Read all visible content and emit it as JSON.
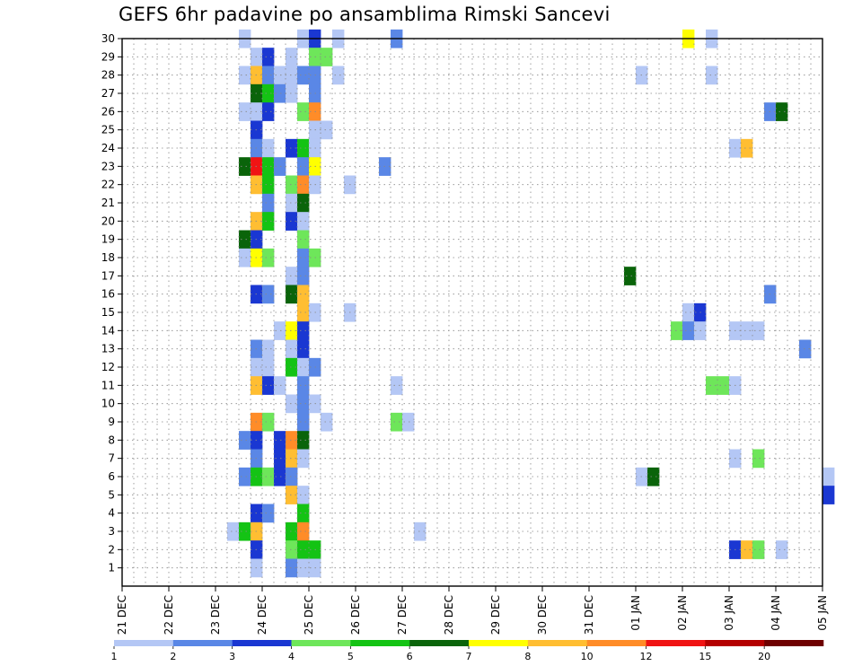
{
  "chart_data": {
    "type": "heatmap",
    "title": "GEFS 6hr padavine po ansamblima Rimski Sancevi",
    "x_ticks": [
      "21 DEC",
      "22 DEC",
      "23 DEC",
      "24 DEC",
      "25 DEC",
      "26 DEC",
      "27 DEC",
      "28 DEC",
      "29 DEC",
      "30 DEC",
      "31 DEC",
      "01 JAN",
      "02 JAN",
      "03 JAN",
      "04 JAN",
      "05 JAN"
    ],
    "x_range": [
      "2020-12-21",
      "2021-01-05"
    ],
    "steps_per_day": 4,
    "y_ticks": [
      1,
      2,
      3,
      4,
      5,
      6,
      7,
      8,
      9,
      10,
      11,
      12,
      13,
      14,
      15,
      16,
      17,
      18,
      19,
      20,
      21,
      22,
      23,
      24,
      25,
      26,
      27,
      28,
      29,
      30
    ],
    "ylim": [
      0,
      30
    ],
    "grid": true,
    "legend_position": "bottom",
    "legend": {
      "labels": [
        "1",
        "2",
        "3",
        "4",
        "5",
        "6",
        "7",
        "8",
        "10",
        "12",
        "15",
        "20"
      ],
      "colors": [
        "#b4c7f5",
        "#5a87e6",
        "#1a37d2",
        "#6ee65a",
        "#14c314",
        "#0a640a",
        "#ffff00",
        "#ffbe32",
        "#ff8c28",
        "#f01414",
        "#b40000",
        "#6e0000"
      ]
    },
    "cells": [
      {
        "member": 30,
        "time": "2020-12-23 12",
        "value": 1.5
      },
      {
        "member": 30,
        "time": "2020-12-24 18",
        "value": 1.5
      },
      {
        "member": 30,
        "time": "2020-12-25 00",
        "value": 3.5
      },
      {
        "member": 30,
        "time": "2020-12-25 12",
        "value": 1.5
      },
      {
        "member": 30,
        "time": "2020-12-26 18",
        "value": 2.5
      },
      {
        "member": 30,
        "time": "2021-01-02 00",
        "value": 7.5
      },
      {
        "member": 30,
        "time": "2021-01-02 12",
        "value": 1.5
      },
      {
        "member": 29,
        "time": "2020-12-23 18",
        "value": 1.5
      },
      {
        "member": 29,
        "time": "2020-12-24 00",
        "value": 3.5
      },
      {
        "member": 29,
        "time": "2020-12-24 12",
        "value": 1.5
      },
      {
        "member": 29,
        "time": "2020-12-25 00",
        "value": 4.5
      },
      {
        "member": 29,
        "time": "2020-12-25 06",
        "value": 4.5
      },
      {
        "member": 28,
        "time": "2020-12-23 12",
        "value": 1.5
      },
      {
        "member": 28,
        "time": "2020-12-23 18",
        "value": 9
      },
      {
        "member": 28,
        "time": "2020-12-24 00",
        "value": 2.5
      },
      {
        "member": 28,
        "time": "2020-12-24 06",
        "value": 1.5
      },
      {
        "member": 28,
        "time": "2020-12-24 12",
        "value": 1.5
      },
      {
        "member": 28,
        "time": "2020-12-24 18",
        "value": 2.5
      },
      {
        "member": 28,
        "time": "2020-12-25 00",
        "value": 2.5
      },
      {
        "member": 28,
        "time": "2020-12-25 12",
        "value": 1.5
      },
      {
        "member": 28,
        "time": "2021-01-01 00",
        "value": 1.5
      },
      {
        "member": 28,
        "time": "2021-01-02 12",
        "value": 1.5
      },
      {
        "member": 27,
        "time": "2020-12-23 18",
        "value": 6.5
      },
      {
        "member": 27,
        "time": "2020-12-24 00",
        "value": 5.5
      },
      {
        "member": 27,
        "time": "2020-12-24 06",
        "value": 2.5
      },
      {
        "member": 27,
        "time": "2020-12-24 12",
        "value": 1.5
      },
      {
        "member": 27,
        "time": "2020-12-25 00",
        "value": 2.5
      },
      {
        "member": 26,
        "time": "2020-12-23 12",
        "value": 1.5
      },
      {
        "member": 26,
        "time": "2020-12-23 18",
        "value": 1.5
      },
      {
        "member": 26,
        "time": "2020-12-24 00",
        "value": 3.5
      },
      {
        "member": 26,
        "time": "2020-12-24 18",
        "value": 4.5
      },
      {
        "member": 26,
        "time": "2020-12-25 00",
        "value": 11
      },
      {
        "member": 26,
        "time": "2021-01-03 18",
        "value": 2.5
      },
      {
        "member": 26,
        "time": "2021-01-04 00",
        "value": 6.5
      },
      {
        "member": 25,
        "time": "2020-12-23 18",
        "value": 3.5
      },
      {
        "member": 25,
        "time": "2020-12-25 00",
        "value": 1.5
      },
      {
        "member": 25,
        "time": "2020-12-25 06",
        "value": 1.5
      },
      {
        "member": 24,
        "time": "2020-12-23 18",
        "value": 2.5
      },
      {
        "member": 24,
        "time": "2020-12-24 00",
        "value": 1.5
      },
      {
        "member": 24,
        "time": "2020-12-24 12",
        "value": 3.5
      },
      {
        "member": 24,
        "time": "2020-12-24 18",
        "value": 5.5
      },
      {
        "member": 24,
        "time": "2020-12-25 00",
        "value": 1.5
      },
      {
        "member": 24,
        "time": "2021-01-03 00",
        "value": 1.5
      },
      {
        "member": 24,
        "time": "2021-01-03 06",
        "value": 9
      },
      {
        "member": 23,
        "time": "2020-12-23 12",
        "value": 6.5
      },
      {
        "member": 23,
        "time": "2020-12-23 18",
        "value": 13
      },
      {
        "member": 23,
        "time": "2020-12-24 00",
        "value": 5.5
      },
      {
        "member": 23,
        "time": "2020-12-24 06",
        "value": 2.5
      },
      {
        "member": 23,
        "time": "2020-12-24 18",
        "value": 2.5
      },
      {
        "member": 23,
        "time": "2020-12-25 00",
        "value": 7.5
      },
      {
        "member": 23,
        "time": "2020-12-26 12",
        "value": 2.5
      },
      {
        "member": 22,
        "time": "2020-12-23 18",
        "value": 9
      },
      {
        "member": 22,
        "time": "2020-12-24 00",
        "value": 5.5
      },
      {
        "member": 22,
        "time": "2020-12-24 12",
        "value": 4.5
      },
      {
        "member": 22,
        "time": "2020-12-24 18",
        "value": 11
      },
      {
        "member": 22,
        "time": "2020-12-25 00",
        "value": 1.5
      },
      {
        "member": 22,
        "time": "2020-12-25 18",
        "value": 1.5
      },
      {
        "member": 21,
        "time": "2020-12-24 00",
        "value": 2.5
      },
      {
        "member": 21,
        "time": "2020-12-24 12",
        "value": 1.5
      },
      {
        "member": 21,
        "time": "2020-12-24 18",
        "value": 6.5
      },
      {
        "member": 20,
        "time": "2020-12-23 18",
        "value": 9
      },
      {
        "member": 20,
        "time": "2020-12-24 00",
        "value": 5.5
      },
      {
        "member": 20,
        "time": "2020-12-24 12",
        "value": 3.5
      },
      {
        "member": 20,
        "time": "2020-12-24 18",
        "value": 1.5
      },
      {
        "member": 19,
        "time": "2020-12-23 12",
        "value": 6.5
      },
      {
        "member": 19,
        "time": "2020-12-23 18",
        "value": 3.5
      },
      {
        "member": 19,
        "time": "2020-12-24 18",
        "value": 4.5
      },
      {
        "member": 18,
        "time": "2020-12-23 12",
        "value": 1.5
      },
      {
        "member": 18,
        "time": "2020-12-23 18",
        "value": 7.5
      },
      {
        "member": 18,
        "time": "2020-12-24 00",
        "value": 4.5
      },
      {
        "member": 18,
        "time": "2020-12-24 18",
        "value": 2.5
      },
      {
        "member": 18,
        "time": "2020-12-25 00",
        "value": 4.5
      },
      {
        "member": 17,
        "time": "2020-12-24 12",
        "value": 1.5
      },
      {
        "member": 17,
        "time": "2020-12-24 18",
        "value": 2.5
      },
      {
        "member": 17,
        "time": "2020-12-31 18",
        "value": 6.5
      },
      {
        "member": 16,
        "time": "2020-12-23 18",
        "value": 3.5
      },
      {
        "member": 16,
        "time": "2020-12-24 00",
        "value": 2.5
      },
      {
        "member": 16,
        "time": "2020-12-24 12",
        "value": 6.5
      },
      {
        "member": 16,
        "time": "2020-12-24 18",
        "value": 9
      },
      {
        "member": 16,
        "time": "2021-01-03 18",
        "value": 2.5
      },
      {
        "member": 15,
        "time": "2020-12-24 18",
        "value": 9
      },
      {
        "member": 15,
        "time": "2020-12-25 00",
        "value": 1.5
      },
      {
        "member": 15,
        "time": "2020-12-25 18",
        "value": 1.5
      },
      {
        "member": 15,
        "time": "2021-01-02 00",
        "value": 1.5
      },
      {
        "member": 15,
        "time": "2021-01-02 06",
        "value": 3.5
      },
      {
        "member": 14,
        "time": "2020-12-24 06",
        "value": 1.5
      },
      {
        "member": 14,
        "time": "2020-12-24 12",
        "value": 7.5
      },
      {
        "member": 14,
        "time": "2020-12-24 18",
        "value": 3.5
      },
      {
        "member": 14,
        "time": "2021-01-01 18",
        "value": 4.5
      },
      {
        "member": 14,
        "time": "2021-01-02 00",
        "value": 2.5
      },
      {
        "member": 14,
        "time": "2021-01-02 06",
        "value": 1.5
      },
      {
        "member": 14,
        "time": "2021-01-03 00",
        "value": 1.5
      },
      {
        "member": 14,
        "time": "2021-01-03 06",
        "value": 1.5
      },
      {
        "member": 14,
        "time": "2021-01-03 12",
        "value": 1.5
      },
      {
        "member": 13,
        "time": "2020-12-23 18",
        "value": 2.5
      },
      {
        "member": 13,
        "time": "2020-12-24 00",
        "value": 1.5
      },
      {
        "member": 13,
        "time": "2020-12-24 12",
        "value": 1.5
      },
      {
        "member": 13,
        "time": "2020-12-24 18",
        "value": 3.5
      },
      {
        "member": 13,
        "time": "2021-01-04 12",
        "value": 2.5
      },
      {
        "member": 12,
        "time": "2020-12-23 18",
        "value": 1.5
      },
      {
        "member": 12,
        "time": "2020-12-24 00",
        "value": 1.5
      },
      {
        "member": 12,
        "time": "2020-12-24 12",
        "value": 5.5
      },
      {
        "member": 12,
        "time": "2020-12-24 18",
        "value": 1.5
      },
      {
        "member": 12,
        "time": "2020-12-25 00",
        "value": 2.5
      },
      {
        "member": 11,
        "time": "2020-12-23 18",
        "value": 9
      },
      {
        "member": 11,
        "time": "2020-12-24 00",
        "value": 3.5
      },
      {
        "member": 11,
        "time": "2020-12-24 06",
        "value": 1.5
      },
      {
        "member": 11,
        "time": "2020-12-24 18",
        "value": 2.5
      },
      {
        "member": 11,
        "time": "2020-12-26 18",
        "value": 1.5
      },
      {
        "member": 11,
        "time": "2021-01-02 12",
        "value": 4.5
      },
      {
        "member": 11,
        "time": "2021-01-02 18",
        "value": 4.5
      },
      {
        "member": 11,
        "time": "2021-01-03 00",
        "value": 1.5
      },
      {
        "member": 10,
        "time": "2020-12-24 12",
        "value": 1.5
      },
      {
        "member": 10,
        "time": "2020-12-24 18",
        "value": 2.5
      },
      {
        "member": 10,
        "time": "2020-12-25 00",
        "value": 1.5
      },
      {
        "member": 9,
        "time": "2020-12-23 18",
        "value": 11
      },
      {
        "member": 9,
        "time": "2020-12-24 00",
        "value": 4.5
      },
      {
        "member": 9,
        "time": "2020-12-24 18",
        "value": 2.5
      },
      {
        "member": 9,
        "time": "2020-12-25 06",
        "value": 1.5
      },
      {
        "member": 9,
        "time": "2020-12-26 18",
        "value": 4.5
      },
      {
        "member": 9,
        "time": "2020-12-27 00",
        "value": 1.5
      },
      {
        "member": 8,
        "time": "2020-12-23 12",
        "value": 2.5
      },
      {
        "member": 8,
        "time": "2020-12-23 18",
        "value": 3.5
      },
      {
        "member": 8,
        "time": "2020-12-24 06",
        "value": 3.5
      },
      {
        "member": 8,
        "time": "2020-12-24 12",
        "value": 11
      },
      {
        "member": 8,
        "time": "2020-12-24 18",
        "value": 6.5
      },
      {
        "member": 7,
        "time": "2020-12-23 18",
        "value": 2.5
      },
      {
        "member": 7,
        "time": "2020-12-24 06",
        "value": 3.5
      },
      {
        "member": 7,
        "time": "2020-12-24 12",
        "value": 9
      },
      {
        "member": 7,
        "time": "2020-12-24 18",
        "value": 1.5
      },
      {
        "member": 7,
        "time": "2021-01-03 00",
        "value": 1.5
      },
      {
        "member": 7,
        "time": "2021-01-03 12",
        "value": 4.5
      },
      {
        "member": 6,
        "time": "2020-12-23 12",
        "value": 2.5
      },
      {
        "member": 6,
        "time": "2020-12-23 18",
        "value": 5.5
      },
      {
        "member": 6,
        "time": "2020-12-24 00",
        "value": 4.5
      },
      {
        "member": 6,
        "time": "2020-12-24 06",
        "value": 3.5
      },
      {
        "member": 6,
        "time": "2020-12-24 12",
        "value": 2.5
      },
      {
        "member": 6,
        "time": "2021-01-01 00",
        "value": 1.5
      },
      {
        "member": 6,
        "time": "2021-01-01 06",
        "value": 6.5
      },
      {
        "member": 6,
        "time": "2021-01-05 00",
        "value": 1.5
      },
      {
        "member": 5,
        "time": "2020-12-24 12",
        "value": 9
      },
      {
        "member": 5,
        "time": "2020-12-24 18",
        "value": 1.5
      },
      {
        "member": 5,
        "time": "2021-01-05 00",
        "value": 3.5
      },
      {
        "member": 4,
        "time": "2020-12-23 18",
        "value": 3.5
      },
      {
        "member": 4,
        "time": "2020-12-24 00",
        "value": 2.5
      },
      {
        "member": 4,
        "time": "2020-12-24 18",
        "value": 5.5
      },
      {
        "member": 3,
        "time": "2020-12-23 06",
        "value": 1.5
      },
      {
        "member": 3,
        "time": "2020-12-23 12",
        "value": 5.5
      },
      {
        "member": 3,
        "time": "2020-12-23 18",
        "value": 9
      },
      {
        "member": 3,
        "time": "2020-12-24 12",
        "value": 5.5
      },
      {
        "member": 3,
        "time": "2020-12-24 18",
        "value": 11
      },
      {
        "member": 3,
        "time": "2020-12-27 06",
        "value": 1.5
      },
      {
        "member": 2,
        "time": "2020-12-23 18",
        "value": 3.5
      },
      {
        "member": 2,
        "time": "2020-12-24 12",
        "value": 4.5
      },
      {
        "member": 2,
        "time": "2020-12-24 18",
        "value": 5.5
      },
      {
        "member": 2,
        "time": "2020-12-25 00",
        "value": 5.5
      },
      {
        "member": 2,
        "time": "2021-01-03 00",
        "value": 3.5
      },
      {
        "member": 2,
        "time": "2021-01-03 06",
        "value": 9
      },
      {
        "member": 2,
        "time": "2021-01-03 12",
        "value": 4.5
      },
      {
        "member": 2,
        "time": "2021-01-04 00",
        "value": 1.5
      },
      {
        "member": 1,
        "time": "2020-12-23 18",
        "value": 1.5
      },
      {
        "member": 1,
        "time": "2020-12-24 12",
        "value": 2.5
      },
      {
        "member": 1,
        "time": "2020-12-24 18",
        "value": 1.5
      },
      {
        "member": 1,
        "time": "2020-12-25 00",
        "value": 1.5
      }
    ]
  }
}
